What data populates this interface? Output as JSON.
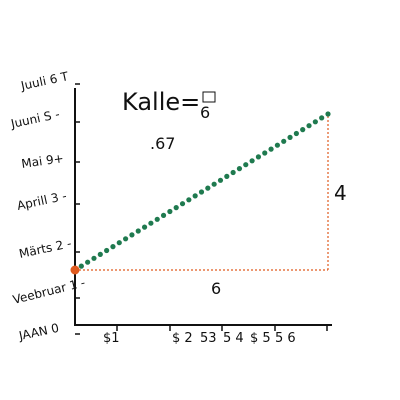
{
  "chart_data": {
    "type": "line",
    "title": "Kalle=",
    "title_fraction_top": "",
    "title_fraction_bottom": "6",
    "slope_label": ".67",
    "y_tick_labels": [
      "JAAN 0",
      "Veebruar 1 -",
      "Märts 2 -",
      "Aprill 3 -",
      "Mai 9+",
      "Juuni S -",
      "Juuli 6 T"
    ],
    "x_tick_labels": [
      "$1",
      "$ 2",
      "53",
      "5 4",
      "$ 5",
      "5 6"
    ],
    "xlim": [
      0,
      6
    ],
    "ylim": [
      0,
      4
    ],
    "series": [
      {
        "marker": "dot",
        "color": "#1f7a4f",
        "start_point_color": "#e05a1e",
        "x": [
          0,
          6
        ],
        "y": [
          0,
          4
        ]
      }
    ],
    "annotations": {
      "run_label": "6",
      "rise_label": "4",
      "guide_color": "#e05a1e"
    },
    "grid": false
  }
}
